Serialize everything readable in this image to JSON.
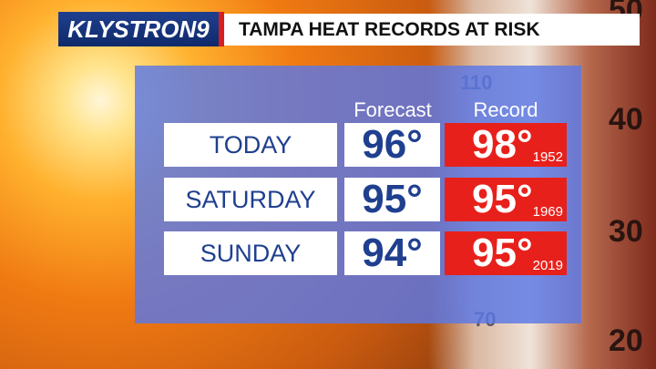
{
  "header": {
    "logo": "KLYSTRON9",
    "title": "TAMPA HEAT RECORDS AT RISK"
  },
  "background": {
    "thermometer_labels": [
      "50",
      "40",
      "30",
      "20",
      "110",
      "70"
    ]
  },
  "table": {
    "columns": [
      "Forecast",
      "Record"
    ],
    "rows": [
      {
        "day": "TODAY",
        "forecast": "96°",
        "record": "98°",
        "record_year": "1952"
      },
      {
        "day": "SATURDAY",
        "forecast": "95°",
        "record": "95°",
        "record_year": "1969"
      },
      {
        "day": "SUNDAY",
        "forecast": "94°",
        "record": "95°",
        "record_year": "2019"
      }
    ]
  }
}
